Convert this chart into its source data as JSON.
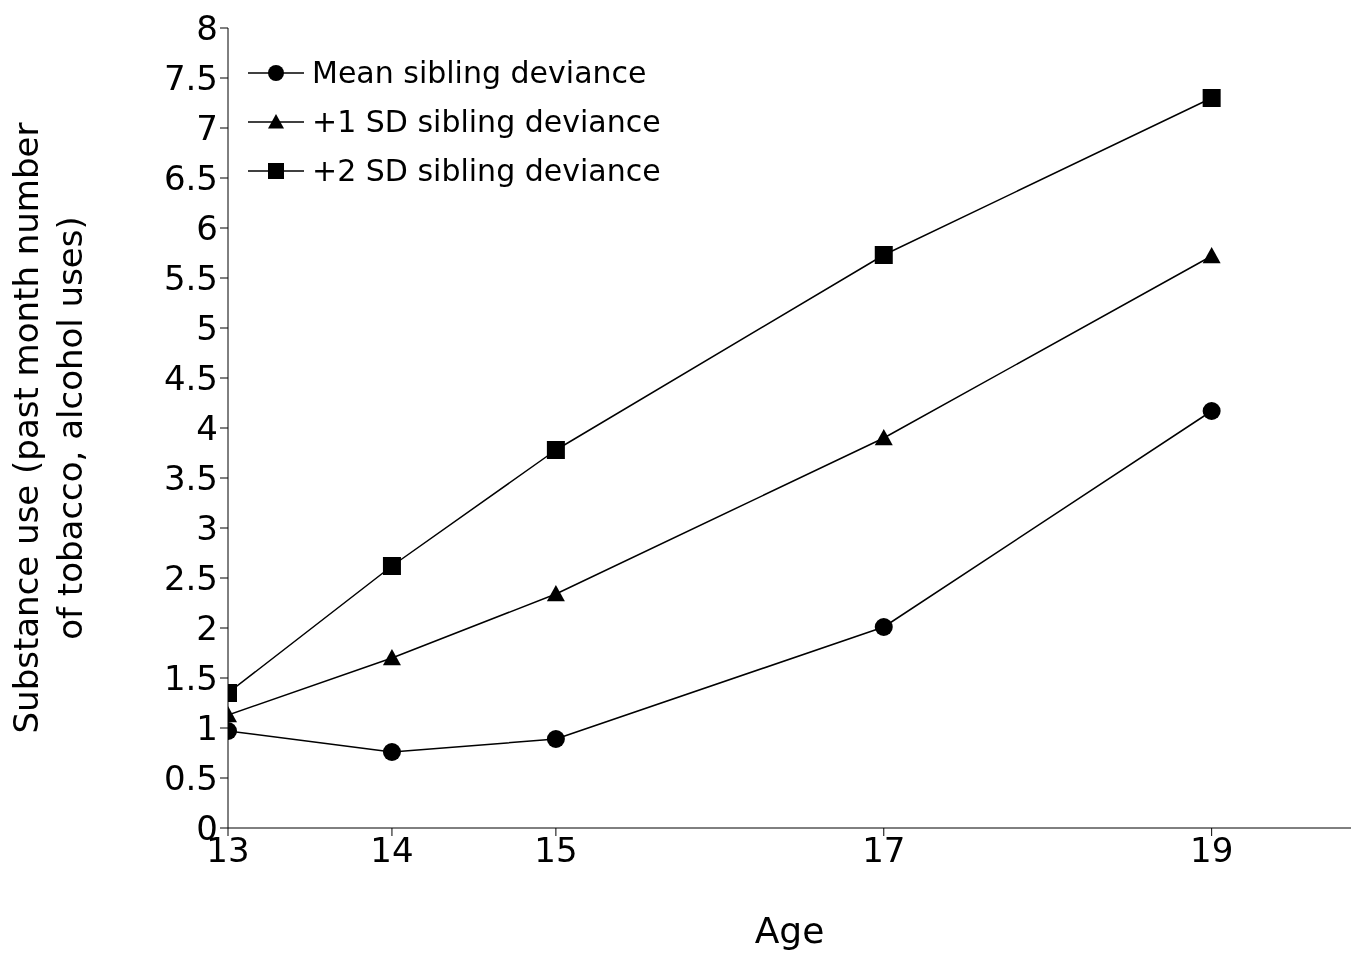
{
  "chart_data": {
    "type": "line",
    "xlabel": "Age",
    "ylabel": "Substance use (past month number of tobacco, alcohol uses)",
    "x": [
      13,
      14,
      15,
      17,
      19
    ],
    "series": [
      {
        "name": "Mean sibling deviance",
        "color": "#000000",
        "marker": "circle",
        "values": [
          0.97,
          0.76,
          0.89,
          2.01,
          4.17
        ]
      },
      {
        "name": "+1 SD sibling deviance",
        "color": "#000000",
        "marker": "triangle",
        "values": [
          1.13,
          1.7,
          2.34,
          3.9,
          5.72
        ]
      },
      {
        "name": "+2 SD sibling deviance",
        "color": "#000000",
        "marker": "square",
        "values": [
          1.35,
          2.62,
          3.78,
          5.73,
          7.3
        ]
      }
    ],
    "xlim": [
      13,
      19.85
    ],
    "xticks": [
      13,
      14,
      15,
      17,
      19
    ],
    "ylim": [
      0,
      8
    ],
    "yticks": [
      0,
      0.5,
      1,
      1.5,
      2,
      2.5,
      3,
      3.5,
      4,
      4.5,
      5,
      5.5,
      6,
      6.5,
      7,
      7.5,
      8
    ],
    "grid": false,
    "legend": "top left",
    "line_style": "solid"
  }
}
